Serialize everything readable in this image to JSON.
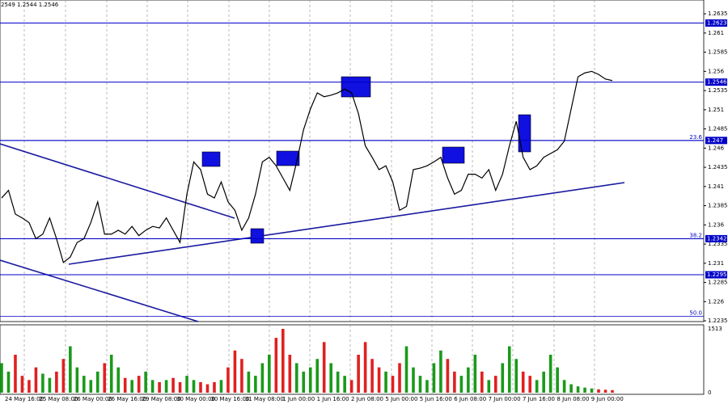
{
  "header": "2549 1.2544 1.2546",
  "chart_data": {
    "type": "line",
    "color": "#000000",
    "values": [
      1.2395,
      1.2405,
      1.2374,
      1.2369,
      1.2363,
      1.2342,
      1.2348,
      1.2369,
      1.2342,
      1.2311,
      1.2318,
      1.2337,
      1.2342,
      1.2363,
      1.239,
      1.2348,
      1.2348,
      1.2353,
      1.2348,
      1.2358,
      1.2346,
      1.2353,
      1.2358,
      1.2356,
      1.2369,
      1.2353,
      1.2337,
      1.24,
      1.2442,
      1.2432,
      1.24,
      1.2395,
      1.2416,
      1.239,
      1.2379,
      1.2353,
      1.2369,
      1.24,
      1.2442,
      1.2448,
      1.2437,
      1.2421,
      1.2405,
      1.2442,
      1.2484,
      1.2511,
      1.2532,
      1.2527,
      1.2529,
      1.2532,
      1.2537,
      1.2532,
      1.2505,
      1.2463,
      1.2448,
      1.2432,
      1.2437,
      1.2416,
      1.2379,
      1.2384,
      1.2432,
      1.2434,
      1.2437,
      1.2442,
      1.2448,
      1.2421,
      1.24,
      1.2405,
      1.2426,
      1.2426,
      1.2421,
      1.2432,
      1.2405,
      1.2426,
      1.2463,
      1.2495,
      1.2448,
      1.2432,
      1.2437,
      1.2448,
      1.2453,
      1.2458,
      1.2469,
      1.2511,
      1.2553,
      1.2558,
      1.256,
      1.2556,
      1.255,
      1.2548
    ],
    "ylim": [
      1.2234,
      1.2653
    ],
    "yticks": [
      1.2235,
      1.226,
      1.2285,
      1.231,
      1.2335,
      1.236,
      1.2385,
      1.241,
      1.2435,
      1.246,
      1.2485,
      1.251,
      1.2535,
      1.256,
      1.2585,
      1.261,
      1.2635
    ],
    "levels": [
      1.2623,
      1.2546,
      1.247,
      1.2342,
      1.2295
    ],
    "level_color": "#0000c8",
    "fib_levels": [
      {
        "value": 1.247,
        "label": "23.6"
      },
      {
        "value": 1.2342,
        "label": "38.2"
      },
      {
        "value": 1.2241,
        "label": "50.0"
      }
    ],
    "x_tick_labels": [
      "24 May 16:00",
      "25 May 08:00",
      "26 May 00:00",
      "26 May 16:00",
      "29 May 08:00",
      "30 May 00:00",
      "30 May 16:00",
      "31 May 08:00",
      "1 Jun 00:00",
      "1 Jun 16:00",
      "2 Jun 08:00",
      "5 Jun 00:00",
      "5 Jun 16:00",
      "6 Jun 08:00",
      "7 Jun 00:00",
      "7 Jun 16:00",
      "8 Jun 08:00",
      "9 Jun 00:00"
    ],
    "volume": {
      "values": [
        700,
        500,
        900,
        400,
        300,
        600,
        450,
        350,
        500,
        800,
        1100,
        600,
        400,
        300,
        500,
        700,
        900,
        600,
        350,
        300,
        400,
        500,
        300,
        250,
        300,
        350,
        250,
        400,
        300,
        250,
        200,
        250,
        300,
        600,
        1000,
        800,
        500,
        400,
        700,
        900,
        1300,
        1513,
        900,
        700,
        500,
        600,
        800,
        1200,
        700,
        500,
        400,
        300,
        900,
        1200,
        800,
        600,
        500,
        400,
        700,
        1100,
        600,
        400,
        300,
        700,
        1000,
        800,
        500,
        400,
        600,
        900,
        500,
        300,
        400,
        700,
        1100,
        800,
        500,
        400,
        300,
        500,
        900,
        600,
        300,
        200,
        150,
        120,
        100,
        80,
        70,
        60
      ],
      "up_color": "#1a9a1a",
      "down_color": "#e02020",
      "ylim": [
        0,
        1513
      ],
      "yticks": [
        1513,
        0
      ]
    }
  }
}
